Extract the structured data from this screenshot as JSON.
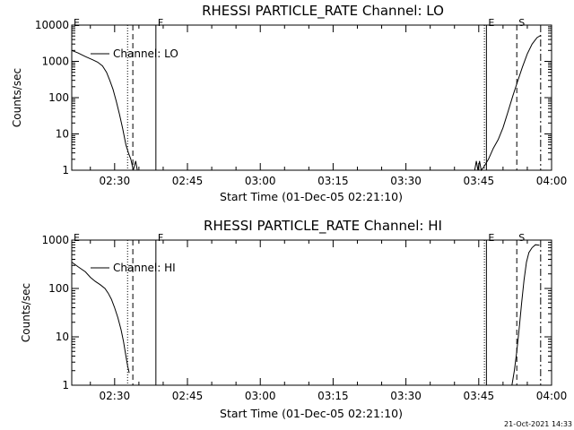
{
  "timestamp": "21-Oct-2021 14:33",
  "chart_data": [
    {
      "type": "line",
      "title": "RHESSI PARTICLE_RATE Channel: LO",
      "xlabel": "Start Time (01-Dec-05 02:21:10)",
      "ylabel": "Counts/sec",
      "yscale": "log",
      "ylim": [
        1,
        10000
      ],
      "xlim": [
        "02:21:10",
        "04:00:00"
      ],
      "yticks": [
        "1",
        "10",
        "100",
        "1000",
        "10000"
      ],
      "xticks": [
        "02:30",
        "02:45",
        "03:00",
        "03:15",
        "03:30",
        "03:45",
        "04:00"
      ],
      "legend": {
        "label": "Channel: LO",
        "position": "top-left"
      },
      "markers": [
        {
          "label": "E",
          "time": "02:21:10",
          "style": "solid"
        },
        {
          "label": "",
          "time": "02:32:40",
          "style": "dotted"
        },
        {
          "label": "",
          "time": "02:33:45",
          "style": "dashed"
        },
        {
          "label": "F",
          "time": "02:38:30",
          "style": "solid"
        },
        {
          "label": "",
          "time": "03:46:10",
          "style": "dotted"
        },
        {
          "label": "E",
          "time": "03:46:35",
          "style": "solid"
        },
        {
          "label": "S",
          "time": "03:52:50",
          "style": "dashed"
        },
        {
          "label": "",
          "time": "03:57:45",
          "style": "dashdot"
        }
      ],
      "series": [
        {
          "name": "Channel: LO",
          "segments": [
            [
              [
                "02:21:10",
                2000
              ],
              [
                "02:22:30",
                1700
              ],
              [
                "02:24:00",
                1350
              ],
              [
                "02:25:30",
                1100
              ],
              [
                "02:26:30",
                950
              ],
              [
                "02:27:30",
                750
              ],
              [
                "02:28:20",
                500
              ],
              [
                "02:29:00",
                300
              ],
              [
                "02:29:40",
                170
              ],
              [
                "02:30:20",
                80
              ],
              [
                "02:31:00",
                35
              ],
              [
                "02:31:40",
                14
              ],
              [
                "02:32:20",
                5
              ],
              [
                "02:32:50",
                3
              ],
              [
                "02:33:20",
                2
              ],
              [
                "02:33:50",
                1
              ],
              [
                "02:34:20",
                1.8
              ],
              [
                "02:34:40",
                1
              ]
            ],
            [
              [
                "03:44:10",
                1
              ],
              [
                "03:44:30",
                1.8
              ],
              [
                "03:44:50",
                1
              ],
              [
                "03:45:10",
                1.8
              ],
              [
                "03:45:30",
                1
              ],
              [
                "03:46:00",
                1.2
              ],
              [
                "03:47:00",
                2
              ],
              [
                "03:48:00",
                4
              ],
              [
                "03:49:00",
                7
              ],
              [
                "03:50:00",
                15
              ],
              [
                "03:51:00",
                40
              ],
              [
                "03:52:00",
                110
              ],
              [
                "03:53:00",
                280
              ],
              [
                "03:54:00",
                700
              ],
              [
                "03:55:00",
                1600
              ],
              [
                "03:56:00",
                3000
              ],
              [
                "03:57:00",
                4500
              ],
              [
                "03:57:45",
                5200
              ]
            ]
          ]
        }
      ]
    },
    {
      "type": "line",
      "title": "RHESSI PARTICLE_RATE Channel: HI",
      "xlabel": "Start Time (01-Dec-05 02:21:10)",
      "ylabel": "Counts/sec",
      "yscale": "log",
      "ylim": [
        1,
        1000
      ],
      "xlim": [
        "02:21:10",
        "04:00:00"
      ],
      "yticks": [
        "1",
        "10",
        "100",
        "1000"
      ],
      "xticks": [
        "02:30",
        "02:45",
        "03:00",
        "03:15",
        "03:30",
        "03:45",
        "04:00"
      ],
      "legend": {
        "label": "Channel: HI",
        "position": "top-left"
      },
      "markers": [
        {
          "label": "E",
          "time": "02:21:10",
          "style": "solid"
        },
        {
          "label": "",
          "time": "02:32:40",
          "style": "dotted"
        },
        {
          "label": "",
          "time": "02:33:45",
          "style": "dashed"
        },
        {
          "label": "F",
          "time": "02:38:30",
          "style": "solid"
        },
        {
          "label": "",
          "time": "03:46:10",
          "style": "dotted"
        },
        {
          "label": "E",
          "time": "03:46:35",
          "style": "solid"
        },
        {
          "label": "S",
          "time": "03:52:50",
          "style": "dashed"
        },
        {
          "label": "",
          "time": "03:57:45",
          "style": "dashdot"
        }
      ],
      "series": [
        {
          "name": "Channel: HI",
          "segments": [
            [
              [
                "02:21:10",
                350
              ],
              [
                "02:22:30",
                280
              ],
              [
                "02:24:00",
                220
              ],
              [
                "02:25:00",
                170
              ],
              [
                "02:26:00",
                140
              ],
              [
                "02:27:00",
                120
              ],
              [
                "02:28:00",
                100
              ],
              [
                "02:28:40",
                80
              ],
              [
                "02:29:20",
                60
              ],
              [
                "02:30:00",
                40
              ],
              [
                "02:30:40",
                25
              ],
              [
                "02:31:20",
                14
              ],
              [
                "02:31:50",
                8
              ],
              [
                "02:32:20",
                4
              ],
              [
                "02:32:40",
                2.5
              ],
              [
                "02:33:00",
                1.8
              ]
            ],
            [
              [
                "03:51:50",
                1
              ],
              [
                "03:52:20",
                2
              ],
              [
                "03:52:50",
                5
              ],
              [
                "03:53:20",
                15
              ],
              [
                "03:53:50",
                50
              ],
              [
                "03:54:20",
                150
              ],
              [
                "03:54:50",
                350
              ],
              [
                "03:55:20",
                550
              ],
              [
                "03:56:00",
                700
              ],
              [
                "03:56:40",
                800
              ],
              [
                "03:57:30",
                780
              ]
            ]
          ]
        }
      ]
    }
  ]
}
